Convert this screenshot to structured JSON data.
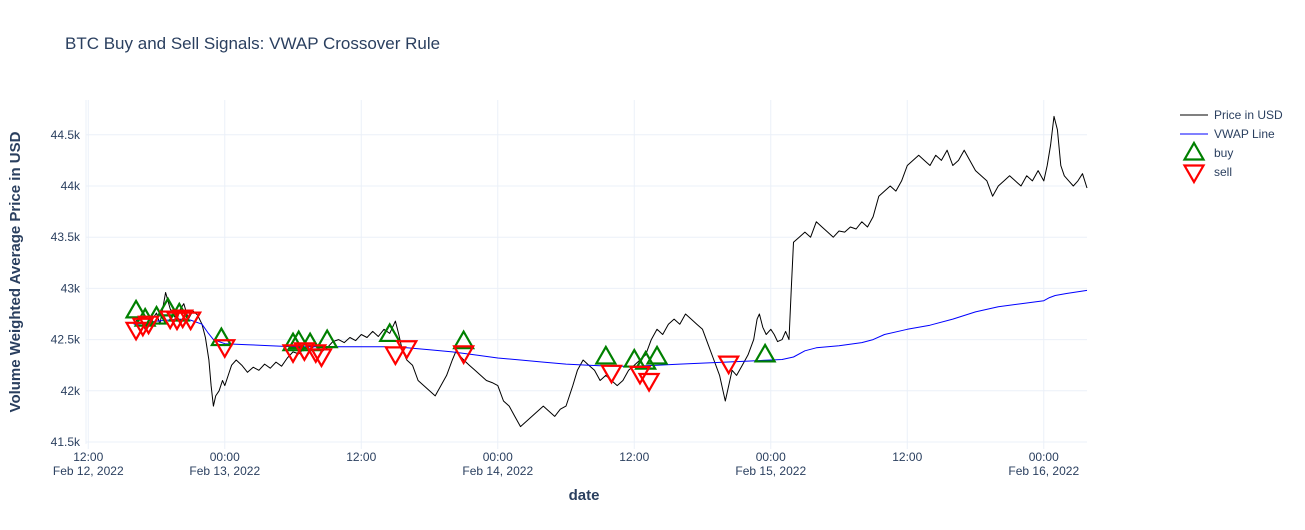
{
  "chart_data": {
    "type": "line",
    "title": "BTC Buy and Sell Signals: VWAP Crossover Rule",
    "xlabel": "date",
    "ylabel": "Volume Weighted Average Price in USD",
    "x_ticks": [
      {
        "t": 12,
        "label": "12:00",
        "sublabel": "Feb 12, 2022"
      },
      {
        "t": 24,
        "label": "00:00",
        "sublabel": "Feb 13, 2022"
      },
      {
        "t": 36,
        "label": "12:00",
        "sublabel": ""
      },
      {
        "t": 48,
        "label": "00:00",
        "sublabel": "Feb 14, 2022"
      },
      {
        "t": 60,
        "label": "12:00",
        "sublabel": ""
      },
      {
        "t": 72,
        "label": "00:00",
        "sublabel": "Feb 15, 2022"
      },
      {
        "t": 84,
        "label": "12:00",
        "sublabel": ""
      },
      {
        "t": 96,
        "label": "00:00",
        "sublabel": "Feb 16, 2022"
      }
    ],
    "y_ticks": [
      {
        "v": 41500,
        "label": "41.5k"
      },
      {
        "v": 42000,
        "label": "42k"
      },
      {
        "v": 42500,
        "label": "42.5k"
      },
      {
        "v": 43000,
        "label": "43k"
      },
      {
        "v": 43500,
        "label": "43.5k"
      },
      {
        "v": 44000,
        "label": "44k"
      },
      {
        "v": 44500,
        "label": "44.5k"
      }
    ],
    "x_range": [
      11.8,
      99.8
    ],
    "y_range": [
      41480,
      44840
    ],
    "grid": true,
    "legend_position": "top-right",
    "series": [
      {
        "name": "Price in USD",
        "color": "#000000",
        "points": [
          [
            16.0,
            42650
          ],
          [
            16.5,
            42720
          ],
          [
            17.0,
            42600
          ],
          [
            17.5,
            42680
          ],
          [
            18.0,
            42760
          ],
          [
            18.3,
            42650
          ],
          [
            18.8,
            42960
          ],
          [
            19.2,
            42800
          ],
          [
            19.6,
            42720
          ],
          [
            20.0,
            42780
          ],
          [
            20.4,
            42850
          ],
          [
            20.8,
            42700
          ],
          [
            21.2,
            42780
          ],
          [
            21.6,
            42740
          ],
          [
            22.0,
            42650
          ],
          [
            22.3,
            42520
          ],
          [
            22.6,
            42300
          ],
          [
            22.8,
            42050
          ],
          [
            23.0,
            41850
          ],
          [
            23.2,
            41950
          ],
          [
            23.5,
            42000
          ],
          [
            23.8,
            42100
          ],
          [
            24.0,
            42050
          ],
          [
            24.3,
            42150
          ],
          [
            24.6,
            42250
          ],
          [
            25.0,
            42300
          ],
          [
            25.5,
            42250
          ],
          [
            26.0,
            42180
          ],
          [
            26.5,
            42230
          ],
          [
            27.0,
            42200
          ],
          [
            27.5,
            42260
          ],
          [
            28.0,
            42220
          ],
          [
            28.5,
            42280
          ],
          [
            29.0,
            42240
          ],
          [
            29.5,
            42320
          ],
          [
            30.0,
            42380
          ],
          [
            30.5,
            42360
          ],
          [
            31.0,
            42420
          ],
          [
            31.5,
            42400
          ],
          [
            32.0,
            42450
          ],
          [
            32.5,
            42380
          ],
          [
            33.0,
            42420
          ],
          [
            33.5,
            42480
          ],
          [
            34.0,
            42500
          ],
          [
            34.5,
            42470
          ],
          [
            35.0,
            42520
          ],
          [
            35.5,
            42490
          ],
          [
            36.0,
            42550
          ],
          [
            36.5,
            42520
          ],
          [
            37.0,
            42580
          ],
          [
            37.5,
            42530
          ],
          [
            38.0,
            42600
          ],
          [
            38.5,
            42560
          ],
          [
            39.0,
            42680
          ],
          [
            39.3,
            42550
          ],
          [
            39.6,
            42400
          ],
          [
            40.0,
            42300
          ],
          [
            40.5,
            42250
          ],
          [
            41.0,
            42100
          ],
          [
            41.5,
            42050
          ],
          [
            42.0,
            42000
          ],
          [
            42.5,
            41950
          ],
          [
            43.0,
            42050
          ],
          [
            43.5,
            42150
          ],
          [
            44.0,
            42300
          ],
          [
            44.3,
            42380
          ],
          [
            44.6,
            42350
          ],
          [
            45.0,
            42300
          ],
          [
            45.5,
            42250
          ],
          [
            46.0,
            42200
          ],
          [
            46.5,
            42150
          ],
          [
            47.0,
            42100
          ],
          [
            47.5,
            42080
          ],
          [
            48.0,
            42050
          ],
          [
            48.5,
            41900
          ],
          [
            49.0,
            41850
          ],
          [
            49.5,
            41750
          ],
          [
            50.0,
            41650
          ],
          [
            50.5,
            41700
          ],
          [
            51.0,
            41750
          ],
          [
            51.5,
            41800
          ],
          [
            52.0,
            41850
          ],
          [
            52.5,
            41800
          ],
          [
            53.0,
            41750
          ],
          [
            53.5,
            41820
          ],
          [
            54.0,
            41850
          ],
          [
            54.3,
            41950
          ],
          [
            54.6,
            42050
          ],
          [
            55.0,
            42200
          ],
          [
            55.5,
            42300
          ],
          [
            56.0,
            42250
          ],
          [
            56.5,
            42200
          ],
          [
            57.0,
            42100
          ],
          [
            57.5,
            42150
          ],
          [
            58.0,
            42100
          ],
          [
            58.5,
            42050
          ],
          [
            59.0,
            42100
          ],
          [
            59.5,
            42200
          ],
          [
            60.0,
            42250
          ],
          [
            60.5,
            42300
          ],
          [
            61.0,
            42350
          ],
          [
            61.5,
            42500
          ],
          [
            62.0,
            42600
          ],
          [
            62.5,
            42550
          ],
          [
            63.0,
            42650
          ],
          [
            63.5,
            42700
          ],
          [
            64.0,
            42650
          ],
          [
            64.5,
            42750
          ],
          [
            65.0,
            42700
          ],
          [
            65.5,
            42650
          ],
          [
            66.0,
            42600
          ],
          [
            66.5,
            42450
          ],
          [
            67.0,
            42300
          ],
          [
            67.5,
            42150
          ],
          [
            67.8,
            42000
          ],
          [
            68.0,
            41900
          ],
          [
            68.3,
            42050
          ],
          [
            68.6,
            42200
          ],
          [
            69.0,
            42150
          ],
          [
            69.5,
            42250
          ],
          [
            70.0,
            42350
          ],
          [
            70.5,
            42500
          ],
          [
            70.8,
            42700
          ],
          [
            71.0,
            42750
          ],
          [
            71.3,
            42620
          ],
          [
            71.6,
            42550
          ],
          [
            72.0,
            42600
          ],
          [
            72.3,
            42550
          ],
          [
            72.6,
            42480
          ],
          [
            73.0,
            42500
          ],
          [
            73.3,
            42580
          ],
          [
            73.6,
            42500
          ],
          [
            73.8,
            43000
          ],
          [
            74.0,
            43450
          ],
          [
            74.5,
            43500
          ],
          [
            75.0,
            43550
          ],
          [
            75.5,
            43500
          ],
          [
            76.0,
            43650
          ],
          [
            76.5,
            43600
          ],
          [
            77.0,
            43550
          ],
          [
            77.5,
            43500
          ],
          [
            78.0,
            43560
          ],
          [
            78.5,
            43550
          ],
          [
            79.0,
            43600
          ],
          [
            79.5,
            43580
          ],
          [
            80.0,
            43650
          ],
          [
            80.5,
            43600
          ],
          [
            81.0,
            43700
          ],
          [
            81.5,
            43900
          ],
          [
            82.0,
            43950
          ],
          [
            82.5,
            44000
          ],
          [
            83.0,
            43950
          ],
          [
            83.5,
            44050
          ],
          [
            84.0,
            44200
          ],
          [
            84.5,
            44250
          ],
          [
            85.0,
            44300
          ],
          [
            85.5,
            44250
          ],
          [
            86.0,
            44200
          ],
          [
            86.5,
            44300
          ],
          [
            87.0,
            44250
          ],
          [
            87.5,
            44350
          ],
          [
            88.0,
            44200
          ],
          [
            88.5,
            44250
          ],
          [
            89.0,
            44350
          ],
          [
            89.5,
            44250
          ],
          [
            90.0,
            44150
          ],
          [
            90.5,
            44100
          ],
          [
            91.0,
            44050
          ],
          [
            91.5,
            43900
          ],
          [
            92.0,
            44000
          ],
          [
            92.5,
            44050
          ],
          [
            93.0,
            44100
          ],
          [
            93.5,
            44050
          ],
          [
            94.0,
            44000
          ],
          [
            94.5,
            44100
          ],
          [
            95.0,
            44050
          ],
          [
            95.5,
            44150
          ],
          [
            96.0,
            44050
          ],
          [
            96.3,
            44200
          ],
          [
            96.6,
            44400
          ],
          [
            96.9,
            44680
          ],
          [
            97.2,
            44550
          ],
          [
            97.5,
            44200
          ],
          [
            97.8,
            44100
          ],
          [
            98.2,
            44050
          ],
          [
            98.6,
            44000
          ],
          [
            99.0,
            44050
          ],
          [
            99.4,
            44120
          ],
          [
            99.8,
            43980
          ]
        ]
      },
      {
        "name": "VWAP Line",
        "color": "#0000ff",
        "points": [
          [
            16.0,
            42650
          ],
          [
            17.0,
            42660
          ],
          [
            18.0,
            42680
          ],
          [
            19.0,
            42690
          ],
          [
            20.0,
            42700
          ],
          [
            21.0,
            42690
          ],
          [
            22.0,
            42650
          ],
          [
            22.5,
            42570
          ],
          [
            23.0,
            42500
          ],
          [
            24.0,
            42460
          ],
          [
            26.0,
            42450
          ],
          [
            28.0,
            42440
          ],
          [
            30.0,
            42430
          ],
          [
            32.0,
            42430
          ],
          [
            34.0,
            42430
          ],
          [
            36.0,
            42430
          ],
          [
            38.0,
            42430
          ],
          [
            40.0,
            42420
          ],
          [
            42.0,
            42400
          ],
          [
            44.0,
            42380
          ],
          [
            46.0,
            42350
          ],
          [
            48.0,
            42320
          ],
          [
            50.0,
            42300
          ],
          [
            52.0,
            42280
          ],
          [
            54.0,
            42260
          ],
          [
            56.0,
            42250
          ],
          [
            58.0,
            42240
          ],
          [
            60.0,
            42240
          ],
          [
            62.0,
            42250
          ],
          [
            64.0,
            42260
          ],
          [
            66.0,
            42270
          ],
          [
            68.0,
            42280
          ],
          [
            70.0,
            42290
          ],
          [
            72.0,
            42300
          ],
          [
            73.0,
            42305
          ],
          [
            74.0,
            42330
          ],
          [
            75.0,
            42390
          ],
          [
            76.0,
            42420
          ],
          [
            78.0,
            42440
          ],
          [
            80.0,
            42470
          ],
          [
            81.0,
            42500
          ],
          [
            82.0,
            42550
          ],
          [
            84.0,
            42600
          ],
          [
            86.0,
            42640
          ],
          [
            88.0,
            42700
          ],
          [
            90.0,
            42770
          ],
          [
            92.0,
            42820
          ],
          [
            94.0,
            42850
          ],
          [
            96.0,
            42880
          ],
          [
            96.5,
            42910
          ],
          [
            97.0,
            42930
          ],
          [
            98.0,
            42950
          ],
          [
            99.8,
            42980
          ]
        ]
      },
      {
        "name": "buy",
        "color": "#008000",
        "marker": "triangle-up",
        "points": [
          [
            16.2,
            42780
          ],
          [
            17.0,
            42700
          ],
          [
            18.0,
            42720
          ],
          [
            19.0,
            42800
          ],
          [
            20.0,
            42750
          ],
          [
            23.7,
            42510
          ],
          [
            30.0,
            42460
          ],
          [
            30.5,
            42480
          ],
          [
            31.5,
            42460
          ],
          [
            33.0,
            42490
          ],
          [
            38.5,
            42550
          ],
          [
            45.0,
            42480
          ],
          [
            57.5,
            42330
          ],
          [
            60.0,
            42300
          ],
          [
            61.0,
            42280
          ],
          [
            62.0,
            42330
          ],
          [
            71.5,
            42350
          ]
        ]
      },
      {
        "name": "sell",
        "color": "#ff0000",
        "marker": "triangle-down",
        "points": [
          [
            16.2,
            42600
          ],
          [
            16.8,
            42640
          ],
          [
            17.3,
            42660
          ],
          [
            19.2,
            42710
          ],
          [
            19.8,
            42700
          ],
          [
            20.3,
            42720
          ],
          [
            21.0,
            42700
          ],
          [
            24.0,
            42430
          ],
          [
            30.0,
            42380
          ],
          [
            31.0,
            42400
          ],
          [
            32.0,
            42380
          ],
          [
            32.5,
            42340
          ],
          [
            39.0,
            42360
          ],
          [
            40.0,
            42420
          ],
          [
            45.0,
            42370
          ],
          [
            58.0,
            42180
          ],
          [
            60.5,
            42170
          ],
          [
            61.3,
            42100
          ],
          [
            68.3,
            42270
          ]
        ]
      }
    ]
  }
}
